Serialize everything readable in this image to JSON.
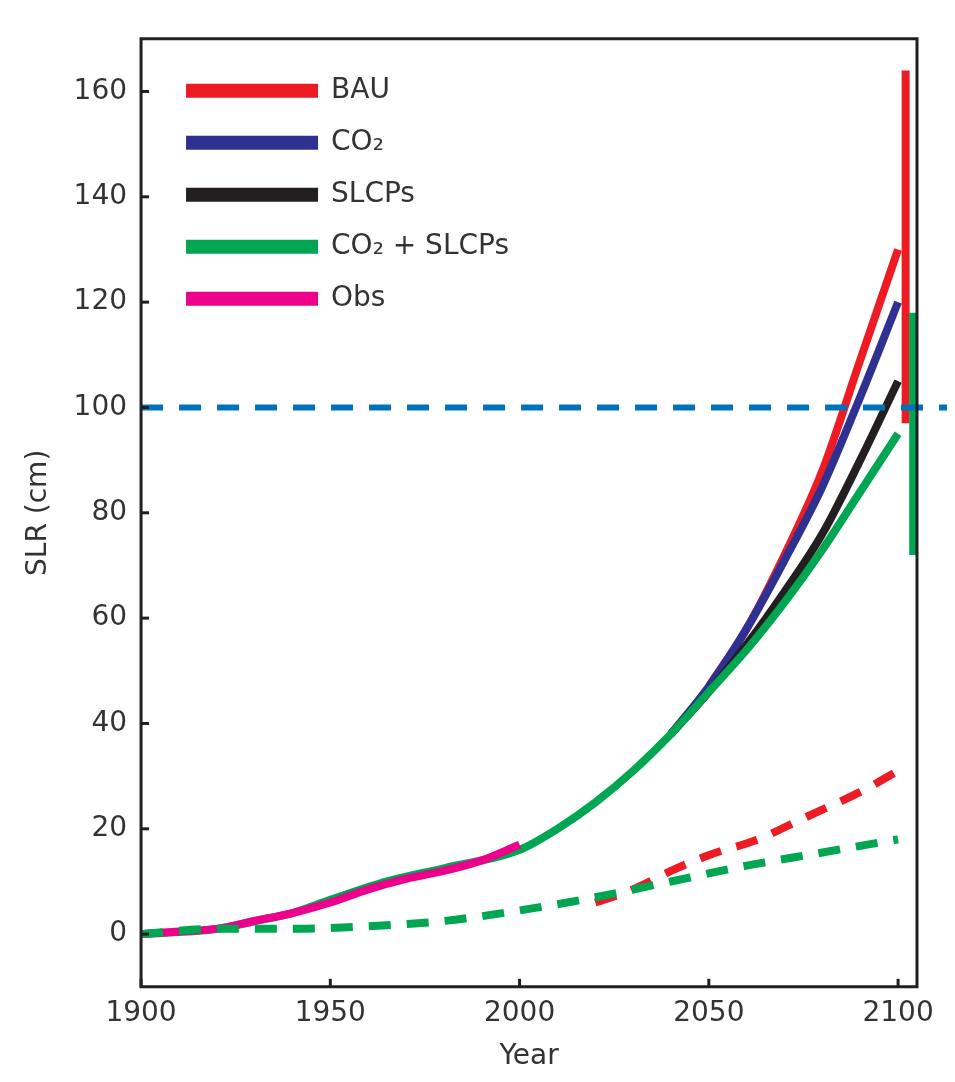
{
  "chart_data": {
    "type": "line",
    "xlabel": "Year",
    "ylabel": "SLR (cm)",
    "xlim": [
      1900,
      2105
    ],
    "ylim": [
      -10,
      170
    ],
    "xticks": [
      1900,
      1950,
      2000,
      2050,
      2100
    ],
    "yticks": [
      0,
      20,
      40,
      60,
      80,
      100,
      120,
      140,
      160
    ],
    "grid": false,
    "legend": "top left",
    "marker": "none",
    "series": [
      {
        "name": "BAU",
        "color": "#ed1c24",
        "x": [
          2050,
          2060,
          2070,
          2080,
          2090,
          2100
        ],
        "values": [
          47,
          58,
          72,
          88,
          109,
          130
        ]
      },
      {
        "name": "CO₂",
        "color": "#2e3192",
        "x": [
          2040,
          2050,
          2060,
          2070,
          2080,
          2090,
          2100
        ],
        "values": [
          38,
          47,
          58,
          71,
          85,
          102,
          120
        ]
      },
      {
        "name": "SLCPs",
        "color": "#231f20",
        "x": [
          2040,
          2050,
          2060,
          2070,
          2080,
          2090,
          2100
        ],
        "values": [
          38,
          46,
          55,
          65,
          76,
          90,
          105
        ]
      },
      {
        "name": "CO₂ + SLCPs",
        "color": "#00a651",
        "x": [
          1900,
          1920,
          1930,
          1940,
          1950,
          1965,
          1980,
          2000,
          2010,
          2020,
          2030,
          2040,
          2050,
          2060,
          2070,
          2080,
          2090,
          2100
        ],
        "values": [
          0,
          1,
          2.5,
          4,
          6.5,
          10,
          12.5,
          16,
          20,
          25,
          31,
          38,
          46,
          54,
          63,
          73,
          84,
          95
        ]
      },
      {
        "name": "Obs",
        "color": "#ec008c",
        "x": [
          1900,
          1910,
          1920,
          1930,
          1940,
          1950,
          1960,
          1970,
          1980,
          1990,
          2000
        ],
        "values": [
          0,
          0.5,
          1,
          2.5,
          4,
          6,
          8.5,
          10.5,
          12,
          14,
          17
        ]
      },
      {
        "color": "#ed1c24",
        "line_style": "dashed",
        "x": [
          2020,
          2030,
          2040,
          2050,
          2063,
          2075,
          2090,
          2100
        ],
        "values": [
          6,
          8.5,
          12,
          15,
          18,
          22,
          27,
          31
        ]
      },
      {
        "color": "#00a651",
        "line_style": "dashed",
        "x": [
          1900,
          1920,
          1940,
          1960,
          1980,
          2000,
          2020,
          2040,
          2060,
          2080,
          2100
        ],
        "values": [
          0,
          1,
          1,
          1.5,
          2.5,
          4.5,
          7,
          10,
          13,
          15.5,
          18
        ]
      },
      {
        "color": "#ed1c24",
        "x": [
          2102,
          2102
        ],
        "values": [
          97,
          164
        ]
      },
      {
        "color": "#00a651",
        "x": [
          2104,
          2104
        ],
        "values": [
          72,
          118
        ]
      }
    ],
    "ref_lines": [
      {
        "axis": "y",
        "value": 100,
        "color": "#0072bc",
        "line_style": "dashed"
      }
    ]
  }
}
